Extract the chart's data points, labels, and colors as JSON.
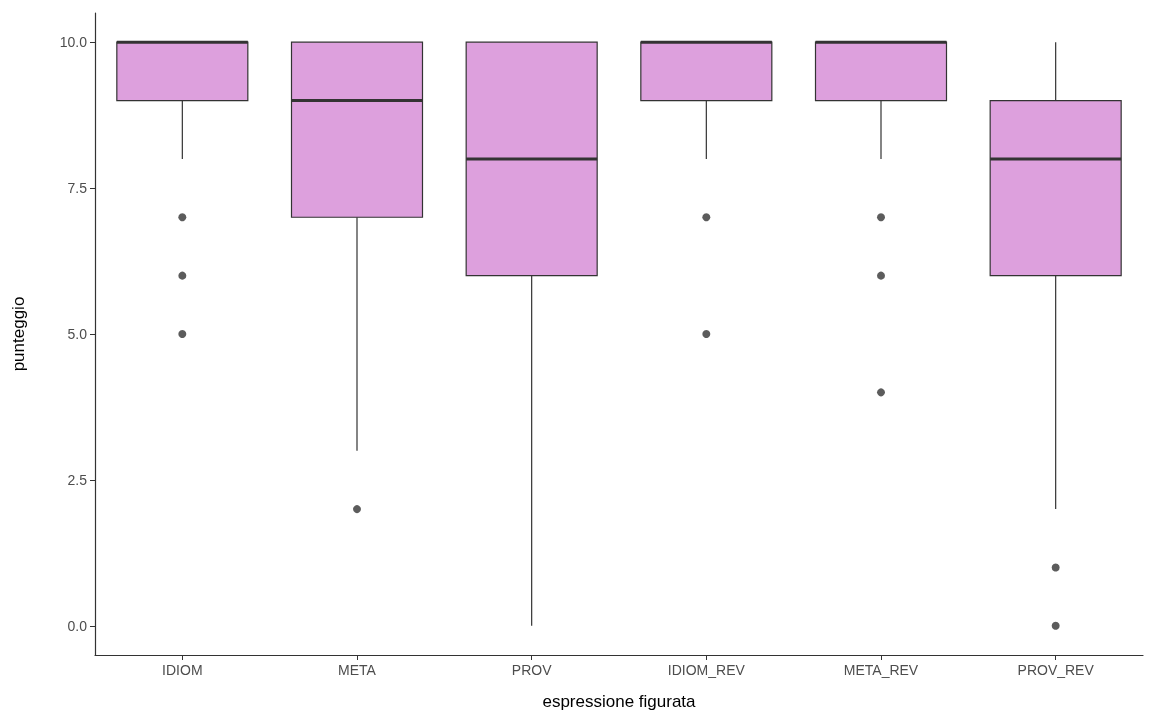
{
  "chart_data": {
    "type": "box",
    "xlabel": "espressione figurata",
    "ylabel": "punteggio",
    "categories": [
      "IDIOM",
      "META",
      "PROV",
      "IDIOM_REV",
      "META_REV",
      "PROV_REV"
    ],
    "color": "#dda0dd",
    "boxes": [
      {
        "low": 8,
        "q1": 9,
        "median": 10,
        "q3": 10,
        "high": 10,
        "outliers": [
          7,
          6,
          5
        ]
      },
      {
        "low": 3,
        "q1": 7,
        "median": 9,
        "q3": 10,
        "high": 10,
        "outliers": [
          2
        ]
      },
      {
        "low": 0,
        "q1": 6,
        "median": 8,
        "q3": 10,
        "high": 10
      },
      {
        "low": 8,
        "q1": 9,
        "median": 10,
        "q3": 10,
        "high": 10,
        "outliers": [
          7,
          5
        ]
      },
      {
        "low": 8,
        "q1": 9,
        "median": 10,
        "q3": 10,
        "high": 10,
        "outliers": [
          7,
          6,
          4
        ]
      },
      {
        "low": 2,
        "q1": 6,
        "median": 8,
        "q3": 9,
        "high": 10,
        "outliers": [
          1,
          0
        ]
      }
    ],
    "ylim": [
      -0.5,
      10.5
    ],
    "yticks": [
      {
        "value": 0,
        "label": "0.0"
      },
      {
        "value": 2.5,
        "label": "2.5"
      },
      {
        "value": 5,
        "label": "5.0"
      },
      {
        "value": 7.5,
        "label": "7.5"
      },
      {
        "value": 10,
        "label": "10.0"
      }
    ],
    "grid": false
  }
}
